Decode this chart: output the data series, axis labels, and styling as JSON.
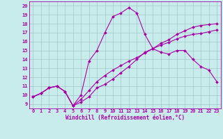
{
  "xlabel": "Windchill (Refroidissement éolien,°C)",
  "bg_color": "#c8ecec",
  "line_color": "#aa00aa",
  "grid_color": "#b0c8c8",
  "xlim": [
    -0.5,
    23.5
  ],
  "ylim": [
    8.5,
    20.5
  ],
  "xticks": [
    0,
    1,
    2,
    3,
    4,
    5,
    6,
    7,
    8,
    9,
    10,
    11,
    12,
    13,
    14,
    15,
    16,
    17,
    18,
    19,
    20,
    21,
    22,
    23
  ],
  "yticks": [
    9,
    10,
    11,
    12,
    13,
    14,
    15,
    16,
    17,
    18,
    19,
    20
  ],
  "line1_x": [
    0,
    1,
    2,
    3,
    4,
    5,
    6,
    7,
    8,
    9,
    10,
    11,
    12,
    13,
    14,
    15,
    16,
    17,
    18,
    19,
    20,
    21,
    22,
    23
  ],
  "line1_y": [
    9.8,
    10.2,
    10.8,
    11.0,
    10.4,
    8.8,
    9.2,
    9.8,
    10.8,
    11.2,
    11.8,
    12.5,
    13.2,
    14.0,
    14.8,
    15.2,
    15.8,
    16.2,
    16.8,
    17.2,
    17.6,
    17.8,
    17.9,
    18.0
  ],
  "line2_x": [
    0,
    1,
    2,
    3,
    4,
    5,
    6,
    7,
    8,
    9,
    10,
    11,
    12,
    13,
    14,
    15,
    16,
    17,
    18,
    19,
    20,
    21,
    22,
    23
  ],
  "line2_y": [
    9.8,
    10.2,
    10.8,
    11.0,
    10.4,
    8.8,
    10.0,
    13.8,
    15.0,
    17.0,
    18.8,
    19.2,
    19.8,
    19.2,
    16.8,
    15.2,
    14.8,
    14.6,
    15.0,
    15.0,
    14.0,
    13.2,
    12.8,
    11.5
  ],
  "line3_x": [
    0,
    1,
    2,
    3,
    4,
    5,
    6,
    7,
    8,
    9,
    10,
    11,
    12,
    13,
    14,
    15,
    16,
    17,
    18,
    19,
    20,
    21,
    22,
    23
  ],
  "line3_y": [
    9.8,
    10.2,
    10.8,
    11.0,
    10.4,
    8.8,
    9.5,
    10.5,
    11.5,
    12.2,
    12.8,
    13.3,
    13.8,
    14.2,
    14.7,
    15.2,
    15.6,
    15.9,
    16.3,
    16.6,
    16.8,
    16.9,
    17.1,
    17.3
  ],
  "marker": "D",
  "markersize": 2.0,
  "linewidth": 0.8,
  "tick_fontsize": 5.0,
  "xlabel_fontsize": 5.5
}
